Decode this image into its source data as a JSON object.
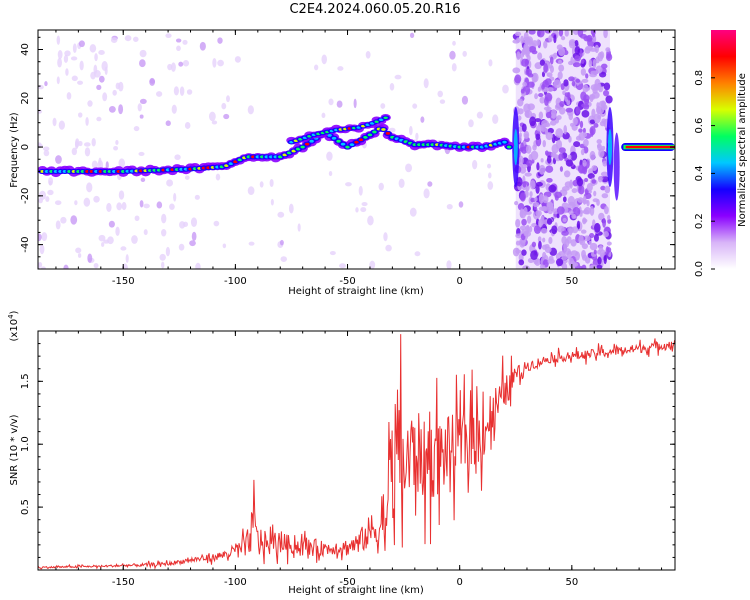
{
  "title": "C2E4.2024.060.05.20.R16",
  "chart_data": [
    {
      "type": "heatmap",
      "xlabel": "Height of straight line (km)",
      "ylabel": "Frequency (Hz)",
      "xlim": [
        -188,
        96
      ],
      "ylim": [
        -50,
        48
      ],
      "xticks": [
        -150,
        -100,
        -50,
        0,
        50
      ],
      "yticks": [
        -40,
        -20,
        0,
        20,
        40
      ],
      "colorbar": {
        "label": "Normalized spectral amplitude",
        "range": [
          0.0,
          1.0
        ],
        "ticks": [
          0.0,
          0.2,
          0.4,
          0.6,
          0.8
        ],
        "tick_labels": [
          "0.0",
          "0.2",
          "0.4",
          "0.6",
          "0.8"
        ],
        "colormap": [
          "#ffffff",
          "#d8b4f8",
          "#8a00ff",
          "#1400ff",
          "#00c8ff",
          "#00ff60",
          "#d8ff00",
          "#ff8000",
          "#ff0000",
          "#ff0080"
        ]
      },
      "ridge": [
        {
          "x": -188,
          "y": -10
        },
        {
          "x": -150,
          "y": -10
        },
        {
          "x": -120,
          "y": -9
        },
        {
          "x": -105,
          "y": -8
        },
        {
          "x": -95,
          "y": -4
        },
        {
          "x": -80,
          "y": -4
        },
        {
          "x": -70,
          "y": 0
        },
        {
          "x": -60,
          "y": 6
        },
        {
          "x": -50,
          "y": 0
        },
        {
          "x": -40,
          "y": 5
        },
        {
          "x": -35,
          "y": 8
        },
        {
          "x": -30,
          "y": 4
        },
        {
          "x": -20,
          "y": 1
        },
        {
          "x": -10,
          "y": 1
        },
        {
          "x": 0,
          "y": 0
        },
        {
          "x": 10,
          "y": 0
        },
        {
          "x": 20,
          "y": 2
        },
        {
          "x": 22,
          "y": 0
        },
        {
          "x": 72,
          "y": 0
        },
        {
          "x": 96,
          "y": 0
        }
      ],
      "upper_branch": [
        {
          "x": -75,
          "y": 2
        },
        {
          "x": -65,
          "y": 5
        },
        {
          "x": -55,
          "y": 7
        },
        {
          "x": -45,
          "y": 8
        },
        {
          "x": -38,
          "y": 10
        },
        {
          "x": -33,
          "y": 12
        }
      ],
      "noise_band_x": [
        25,
        67
      ]
    },
    {
      "type": "line",
      "xlabel": "Height of straight line (km)",
      "ylabel": "SNR (10 * v/v)",
      "y_multiplier": "(x10^4)",
      "y_multiplier_base": "(x10",
      "y_multiplier_exp": "4",
      "xlim": [
        -188,
        96
      ],
      "ylim": [
        0,
        1.9
      ],
      "xticks": [
        -150,
        -100,
        -50,
        0,
        50
      ],
      "yticks": [
        0.5,
        1.0,
        1.5
      ],
      "ytick_labels": [
        "0.5",
        "1.0",
        "1.5"
      ],
      "color": "#e83030",
      "x": [
        -188,
        -160,
        -140,
        -130,
        -120,
        -110,
        -105,
        -100,
        -95,
        -92,
        -90,
        -85,
        -80,
        -75,
        -70,
        -65,
        -60,
        -55,
        -50,
        -45,
        -40,
        -35,
        -32,
        -30,
        -28,
        -26,
        -24,
        -20,
        -15,
        -10,
        -5,
        0,
        5,
        10,
        15,
        20,
        25,
        30,
        40,
        60,
        80,
        96
      ],
      "y": [
        0.02,
        0.03,
        0.04,
        0.05,
        0.08,
        0.1,
        0.12,
        0.15,
        0.2,
        0.35,
        0.25,
        0.2,
        0.22,
        0.2,
        0.18,
        0.18,
        0.17,
        0.18,
        0.18,
        0.22,
        0.3,
        0.35,
        0.5,
        0.7,
        1.1,
        0.9,
        0.8,
        0.95,
        0.85,
        0.9,
        0.95,
        1.0,
        1.05,
        1.1,
        1.25,
        1.4,
        1.55,
        1.62,
        1.68,
        1.72,
        1.76,
        1.8
      ],
      "noise_amplitude": [
        0.01,
        0.01,
        0.02,
        0.02,
        0.03,
        0.04,
        0.05,
        0.08,
        0.12,
        0.3,
        0.15,
        0.12,
        0.12,
        0.1,
        0.1,
        0.1,
        0.08,
        0.08,
        0.1,
        0.12,
        0.2,
        0.35,
        0.45,
        0.6,
        0.7,
        0.6,
        0.55,
        0.5,
        0.45,
        0.45,
        0.4,
        0.35,
        0.35,
        0.35,
        0.3,
        0.2,
        0.1,
        0.06,
        0.05,
        0.05,
        0.05,
        0.05
      ]
    }
  ]
}
